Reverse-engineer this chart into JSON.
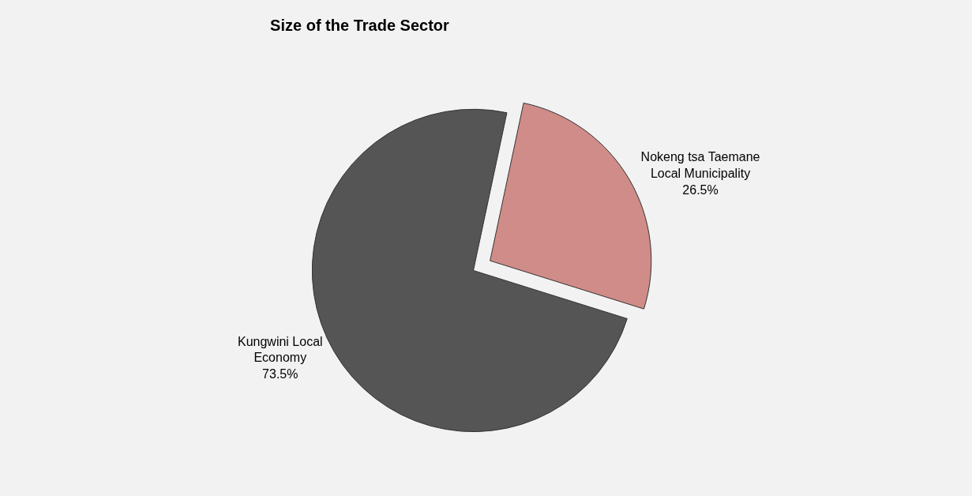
{
  "chart_data": {
    "type": "pie",
    "title": "Size of the Trade Sector",
    "categories": [
      "Nokeng tsa Taemane Local Municipality",
      "Kungwini Local Economy"
    ],
    "values": [
      26.5,
      73.5
    ],
    "colors": [
      "#d08c88",
      "#555555"
    ],
    "value_labels": [
      "26.5%",
      "73.5%"
    ],
    "legend": false
  }
}
